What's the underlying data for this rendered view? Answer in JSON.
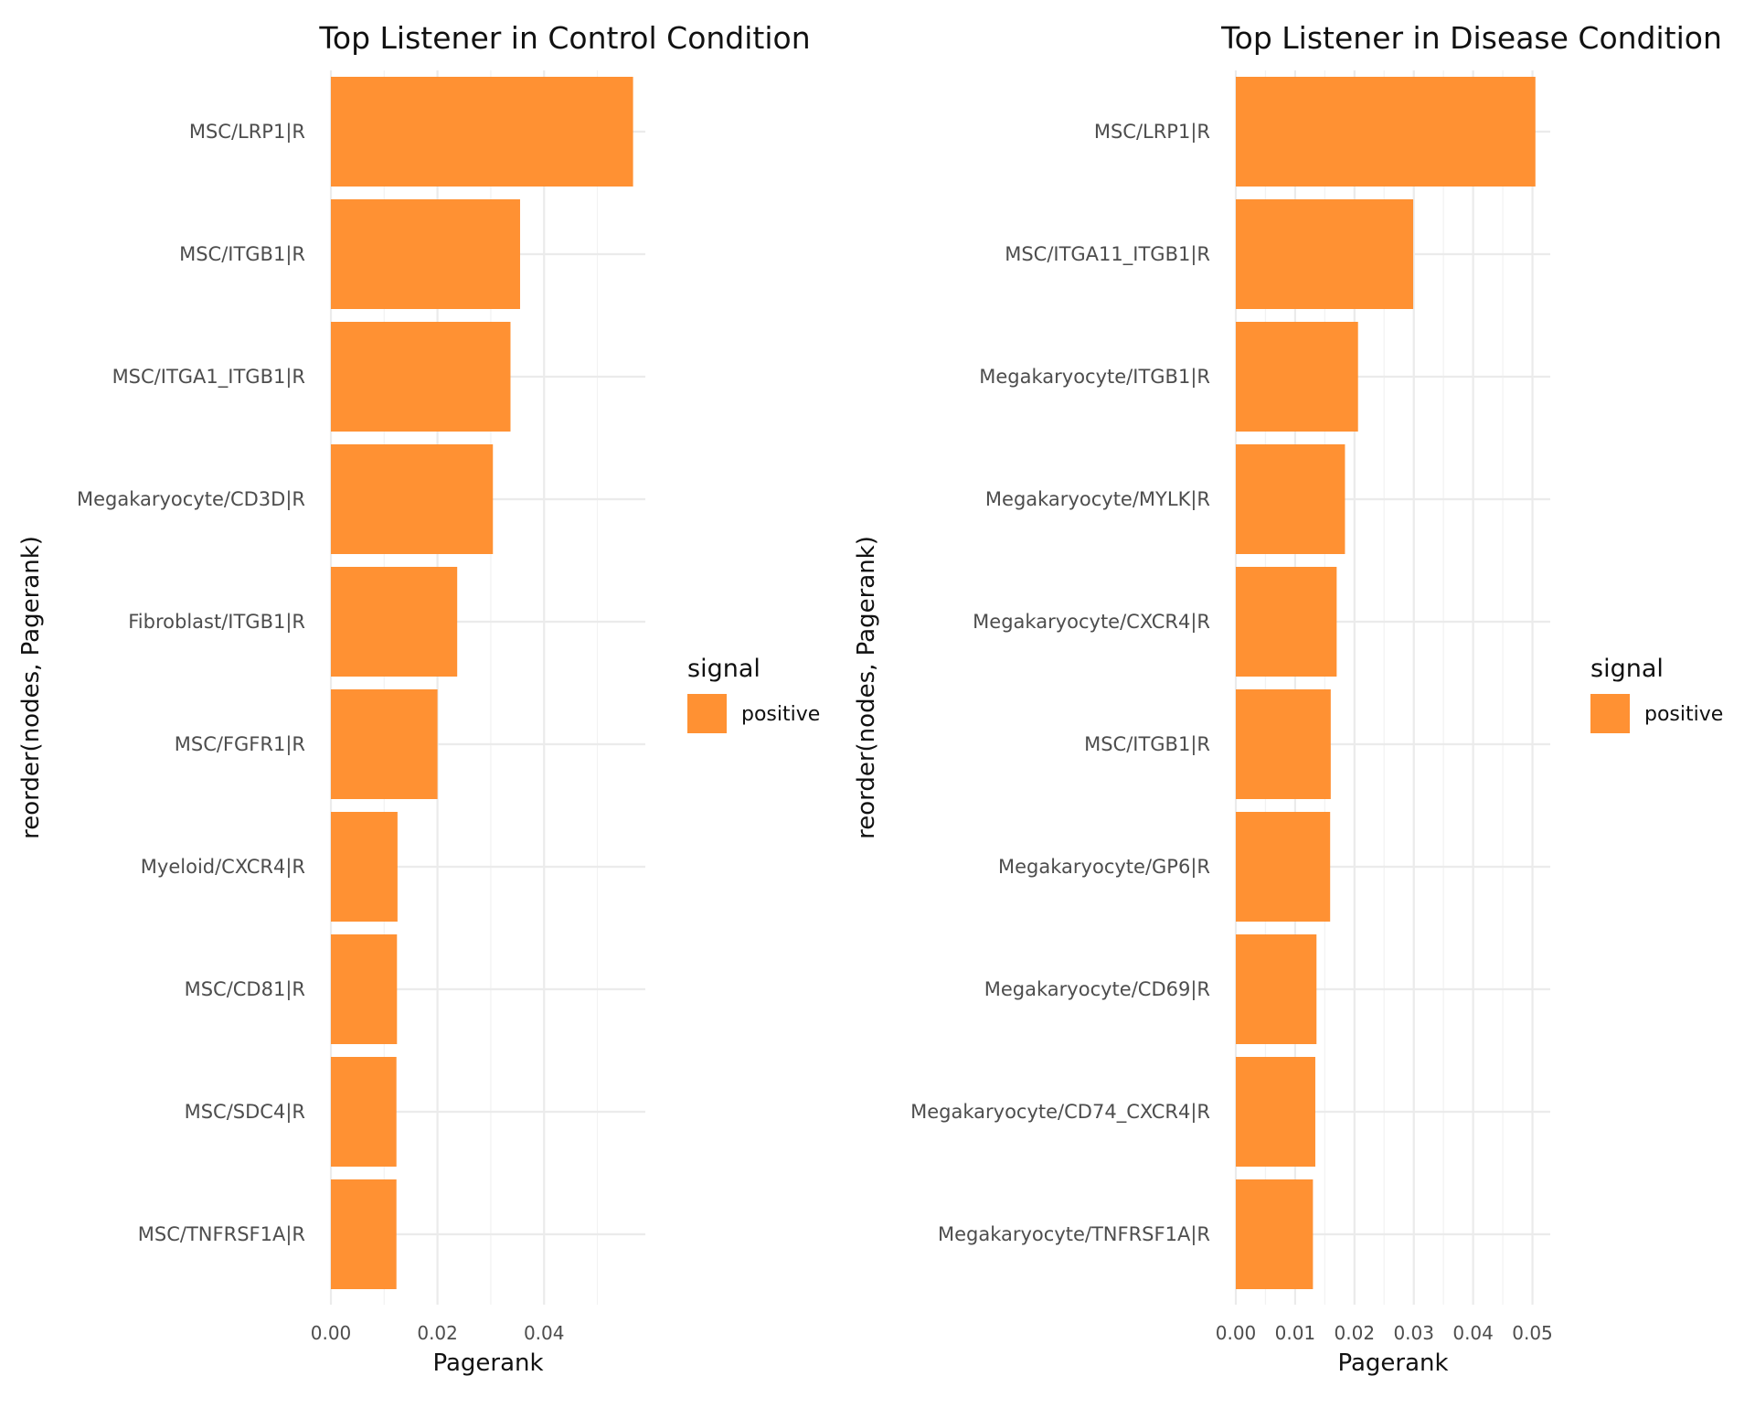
{
  "chart_data": [
    {
      "type": "bar",
      "orientation": "horizontal",
      "title": "Top Listener in Control Condition",
      "xlabel": "Pagerank",
      "ylabel": "reorder(nodes, Pagerank)",
      "xlim": [
        0,
        0.059
      ],
      "x_ticks": [
        0.0,
        0.02,
        0.04
      ],
      "x_tick_labels": [
        "0.00",
        "0.02",
        "0.04"
      ],
      "grid": true,
      "categories": [
        "MSC/LRP1|R",
        "MSC/ITGB1|R",
        "MSC/ITGA1_ITGB1|R",
        "Megakaryocyte/CD3D|R",
        "Fibroblast/ITGB1|R",
        "MSC/FGFR1|R",
        "Myeloid/CXCR4|R",
        "MSC/CD81|R",
        "MSC/SDC4|R",
        "MSC/TNFRSF1A|R"
      ],
      "values": [
        0.0567,
        0.0355,
        0.0337,
        0.0304,
        0.0237,
        0.02,
        0.0125,
        0.0124,
        0.0123,
        0.0123
      ],
      "color": "#ff9133",
      "legend": {
        "title": "signal",
        "entries": [
          "positive"
        ],
        "position": "right"
      }
    },
    {
      "type": "bar",
      "orientation": "horizontal",
      "title": "Top Listener in Disease Condition",
      "xlabel": "Pagerank",
      "ylabel": "reorder(nodes, Pagerank)",
      "xlim": [
        0,
        0.053
      ],
      "x_ticks": [
        0.0,
        0.01,
        0.02,
        0.03,
        0.04,
        0.05
      ],
      "x_tick_labels": [
        "0.00",
        "0.01",
        "0.02",
        "0.03",
        "0.04",
        "0.05"
      ],
      "grid": true,
      "categories": [
        "MSC/LRP1|R",
        "MSC/ITGA11_ITGB1|R",
        "Megakaryocyte/ITGB1|R",
        "Megakaryocyte/MYLK|R",
        "Megakaryocyte/CXCR4|R",
        "MSC/ITGB1|R",
        "Megakaryocyte/GP6|R",
        "Megakaryocyte/CD69|R",
        "Megakaryocyte/CD74_CXCR4|R",
        "Megakaryocyte/TNFRSF1A|R"
      ],
      "values": [
        0.0505,
        0.0299,
        0.0206,
        0.0184,
        0.017,
        0.016,
        0.0159,
        0.0136,
        0.0134,
        0.013
      ],
      "color": "#ff9133",
      "legend": {
        "title": "signal",
        "entries": [
          "positive"
        ],
        "position": "right"
      }
    }
  ]
}
